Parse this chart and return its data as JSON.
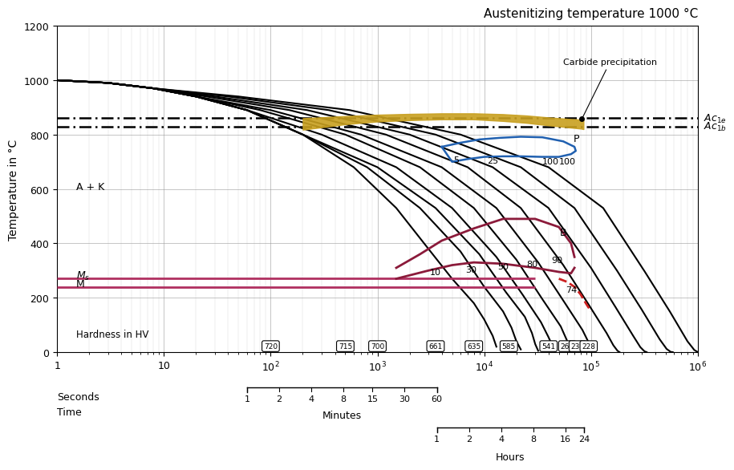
{
  "title": "Austenitizing temperature 1000 °C",
  "ylabel": "Temperature in °C",
  "xlim": [
    1,
    1000000
  ],
  "ylim": [
    0,
    1200
  ],
  "ac1e": 860,
  "ac1b": 830,
  "ms_line": 270,
  "m_line": 240,
  "background_color": "#ffffff",
  "hardness_values": [
    720,
    715,
    700,
    661,
    635,
    585,
    541,
    268,
    232,
    228
  ],
  "hardness_x": [
    100,
    500,
    1000,
    3500,
    8000,
    17000,
    40000,
    60000,
    75000,
    95000
  ],
  "cooling_curves_x": [
    [
      1,
      3,
      8,
      20,
      60,
      200,
      600,
      1500,
      3000,
      5000,
      8000,
      10000,
      12000,
      13000
    ],
    [
      1,
      3,
      8,
      20,
      60,
      200,
      800,
      2500,
      6000,
      10000,
      15000,
      18000,
      20000,
      22000
    ],
    [
      1,
      3,
      8,
      20,
      60,
      200,
      1000,
      3500,
      9000,
      16000,
      24000,
      28000,
      30000,
      32000
    ],
    [
      1,
      3,
      8,
      20,
      60,
      300,
      1500,
      5000,
      13000,
      23000,
      34000,
      40000,
      44000,
      46000
    ],
    [
      1,
      3,
      8,
      20,
      80,
      500,
      2500,
      8000,
      20000,
      35000,
      52000,
      60000,
      66000,
      70000
    ],
    [
      1,
      3,
      8,
      20,
      100,
      700,
      4000,
      13000,
      32000,
      56000,
      83000,
      96000,
      105000,
      110000
    ],
    [
      1,
      3,
      8,
      25,
      150,
      1200,
      7000,
      22000,
      55000,
      95000,
      140000,
      162000,
      177000,
      185000
    ],
    [
      1,
      3,
      8,
      30,
      220,
      2000,
      12000,
      40000,
      100000,
      170000,
      250000,
      290000,
      317000,
      332000
    ],
    [
      1,
      3,
      8,
      40,
      350,
      3500,
      22000,
      70000,
      175000,
      300000,
      440000,
      510000,
      557000,
      583000
    ],
    [
      1,
      3,
      8,
      50,
      550,
      6000,
      40000,
      130000,
      320000,
      550000,
      800000,
      927000,
      1000000,
      1000000
    ]
  ],
  "cooling_curves_y": [
    [
      1000,
      990,
      970,
      940,
      890,
      800,
      680,
      530,
      380,
      270,
      180,
      120,
      60,
      20
    ],
    [
      1000,
      990,
      970,
      940,
      890,
      800,
      680,
      530,
      370,
      240,
      150,
      90,
      40,
      10
    ],
    [
      1000,
      990,
      970,
      940,
      890,
      800,
      680,
      530,
      360,
      220,
      130,
      70,
      30,
      5
    ],
    [
      1000,
      990,
      970,
      940,
      890,
      800,
      680,
      530,
      350,
      210,
      110,
      55,
      20,
      2
    ],
    [
      1000,
      990,
      970,
      940,
      890,
      800,
      680,
      530,
      340,
      195,
      95,
      40,
      12,
      1
    ],
    [
      1000,
      990,
      970,
      940,
      890,
      800,
      680,
      530,
      330,
      185,
      82,
      32,
      8,
      0
    ],
    [
      1000,
      990,
      970,
      940,
      890,
      800,
      680,
      530,
      320,
      175,
      70,
      25,
      5,
      0
    ],
    [
      1000,
      990,
      970,
      940,
      890,
      800,
      680,
      530,
      310,
      165,
      58,
      18,
      3,
      0
    ],
    [
      1000,
      990,
      970,
      940,
      890,
      800,
      680,
      530,
      300,
      155,
      47,
      12,
      1,
      0
    ],
    [
      1000,
      990,
      970,
      940,
      890,
      800,
      680,
      530,
      295,
      148,
      40,
      8,
      0,
      0
    ]
  ],
  "pearlite_x": [
    4000,
    6000,
    9000,
    14000,
    22000,
    35000,
    55000,
    70000,
    72000,
    65000,
    50000,
    35000,
    22000,
    15000,
    10000,
    7000,
    5000,
    4000
  ],
  "pearlite_y": [
    755,
    770,
    782,
    788,
    792,
    790,
    775,
    755,
    740,
    728,
    718,
    718,
    720,
    720,
    718,
    710,
    700,
    755
  ],
  "bainite_upper_x": [
    1500,
    2500,
    4000,
    8000,
    15000,
    30000,
    50000,
    65000,
    70000
  ],
  "bainite_upper_y": [
    310,
    360,
    410,
    455,
    490,
    490,
    460,
    400,
    350
  ],
  "bainite_lower_x": [
    70000,
    65000,
    50000,
    30000,
    15000,
    8000,
    5000,
    3000,
    1500
  ],
  "bainite_lower_y": [
    310,
    290,
    295,
    310,
    325,
    330,
    320,
    300,
    270
  ],
  "carbide_band_x": [
    200,
    500,
    1000,
    2000,
    4000,
    8000,
    15000,
    25000,
    40000,
    60000,
    80000,
    85000
  ],
  "carbide_band_y_top": [
    860,
    868,
    873,
    876,
    878,
    878,
    875,
    870,
    863,
    858,
    855,
    855
  ],
  "carbide_band_y_bot": [
    818,
    838,
    848,
    853,
    856,
    856,
    850,
    843,
    834,
    827,
    822,
    820
  ],
  "ms_dashed_x": [
    50000,
    60000,
    70000,
    80000,
    90000,
    100000
  ],
  "ms_dashed_y": [
    270,
    258,
    240,
    212,
    178,
    150
  ],
  "minutes_ticks": [
    60,
    120,
    240,
    480,
    900,
    1800,
    3600
  ],
  "minutes_labels": [
    "1",
    "2",
    "4",
    "8",
    "15",
    "30",
    "60"
  ],
  "hours_ticks": [
    3600,
    7200,
    14400,
    28800,
    57600,
    86400
  ],
  "hours_labels": [
    "1",
    "2",
    "4",
    "8",
    "16",
    "24"
  ]
}
